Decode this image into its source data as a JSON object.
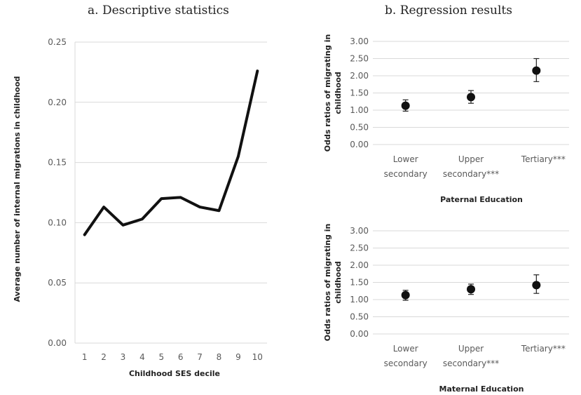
{
  "panels": {
    "a_title": "a. Descriptive statistics",
    "b_title": "b. Regression results"
  },
  "chart_data": [
    {
      "type": "line",
      "title": "",
      "xlabel": "Childhood SES decile",
      "ylabel": "Average number of internal migrations in childhood",
      "x": [
        1,
        2,
        3,
        4,
        5,
        6,
        7,
        8,
        9,
        10
      ],
      "y": [
        0.09,
        0.113,
        0.098,
        0.103,
        0.12,
        0.121,
        0.113,
        0.11,
        0.155,
        0.226
      ],
      "ylim": [
        0,
        0.25
      ],
      "yticks": [
        "0.00",
        "0.05",
        "0.10",
        "0.15",
        "0.20",
        "0.25"
      ],
      "grid": true,
      "color": "#111111"
    },
    {
      "type": "scatter",
      "title": "",
      "xlabel": "Paternal Education",
      "ylabel": "Odds ratios of migrating in childhood",
      "categories": [
        "Lower secondary",
        "Upper secondary***",
        "Tertiary***"
      ],
      "values": [
        1.13,
        1.38,
        2.15
      ],
      "ci_low": [
        0.97,
        1.2,
        1.83
      ],
      "ci_high": [
        1.3,
        1.57,
        2.5
      ],
      "ylim": [
        0,
        3
      ],
      "yticks": [
        "0.00",
        "0.50",
        "1.00",
        "1.50",
        "2.00",
        "2.50",
        "3.00"
      ],
      "grid": true
    },
    {
      "type": "scatter",
      "title": "",
      "xlabel": "Maternal Education",
      "ylabel": "Odds ratios of migrating in childhood",
      "categories": [
        "Lower secondary",
        "Upper secondary***",
        "Tertiary***"
      ],
      "values": [
        1.13,
        1.3,
        1.42
      ],
      "ci_low": [
        0.98,
        1.15,
        1.18
      ],
      "ci_high": [
        1.27,
        1.45,
        1.72
      ],
      "ylim": [
        0,
        3
      ],
      "yticks": [
        "0.00",
        "0.50",
        "1.00",
        "1.50",
        "2.00",
        "2.50",
        "3.00"
      ],
      "grid": true
    }
  ]
}
